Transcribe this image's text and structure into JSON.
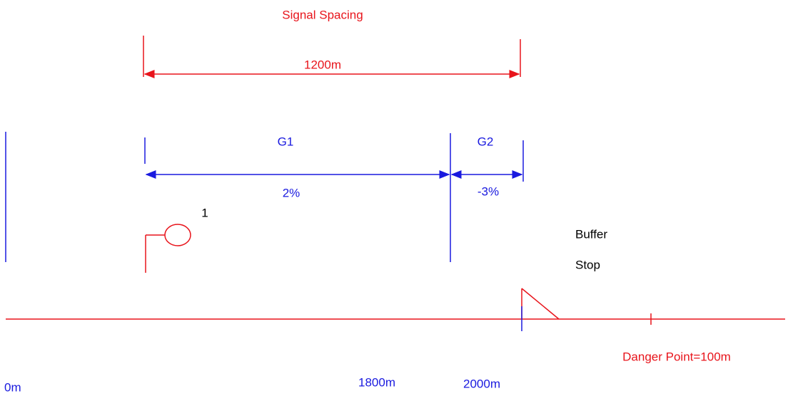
{
  "title": "Signal Spacing",
  "spacing_label": "1200m",
  "gradients": [
    {
      "name": "G1",
      "grade": "2%"
    },
    {
      "name": "G2",
      "grade": "-3%"
    }
  ],
  "signal_label": "1",
  "buffer_stop": [
    "Buffer",
    "Stop"
  ],
  "danger_point": "Danger Point=100m",
  "positions": [
    "0m",
    "1800m",
    "2000m"
  ]
}
